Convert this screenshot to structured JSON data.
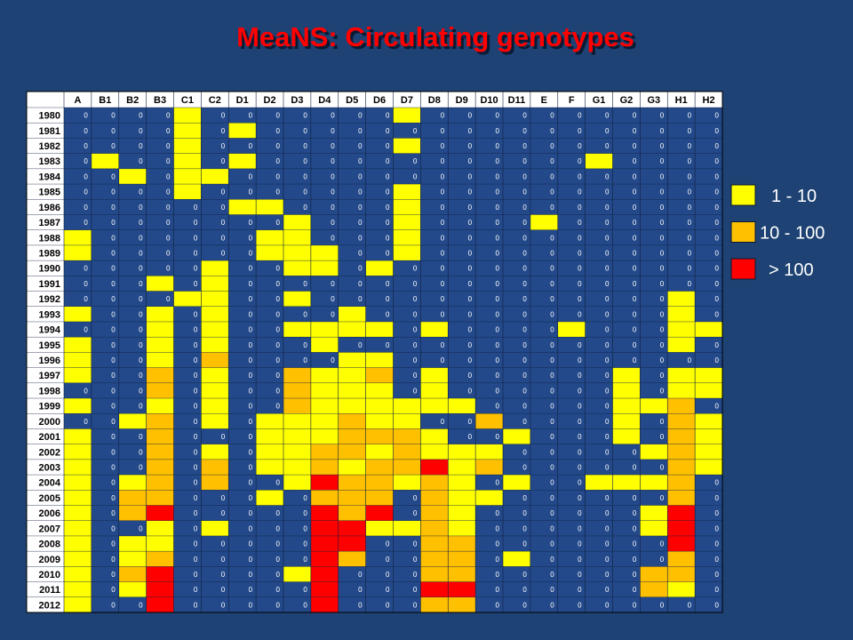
{
  "title": "MeaNS: Circulating genotypes",
  "legend": [
    {
      "label": "1 - 10",
      "color": "#ffff00"
    },
    {
      "label": "10 - 100",
      "color": "#ffc000"
    },
    {
      "label": "> 100",
      "color": "#ff0000"
    }
  ],
  "empty_color": "#23498a",
  "table": {
    "columns": [
      "A",
      "B1",
      "B2",
      "B3",
      "C1",
      "C2",
      "D1",
      "D2",
      "D3",
      "D4",
      "D5",
      "D6",
      "D7",
      "D8",
      "D9",
      "D10",
      "D11",
      "E",
      "F",
      "G1",
      "G2",
      "G3",
      "H1",
      "H2"
    ],
    "rows": [
      {
        "year": "1980",
        "cells": [
          0,
          0,
          0,
          0,
          1,
          0,
          0,
          0,
          0,
          0,
          0,
          0,
          1,
          0,
          0,
          0,
          0,
          0,
          0,
          0,
          0,
          0,
          0,
          0
        ]
      },
      {
        "year": "1981",
        "cells": [
          0,
          0,
          0,
          0,
          1,
          0,
          1,
          0,
          0,
          0,
          0,
          0,
          0,
          0,
          0,
          0,
          0,
          0,
          0,
          0,
          0,
          0,
          0,
          0
        ]
      },
      {
        "year": "1982",
        "cells": [
          0,
          0,
          0,
          0,
          1,
          0,
          0,
          0,
          0,
          0,
          0,
          0,
          1,
          0,
          0,
          0,
          0,
          0,
          0,
          0,
          0,
          0,
          0,
          0
        ]
      },
      {
        "year": "1983",
        "cells": [
          0,
          1,
          0,
          0,
          1,
          0,
          1,
          0,
          0,
          0,
          0,
          0,
          0,
          0,
          0,
          0,
          0,
          0,
          0,
          1,
          0,
          0,
          0,
          0
        ]
      },
      {
        "year": "1984",
        "cells": [
          0,
          0,
          1,
          0,
          1,
          1,
          0,
          0,
          0,
          0,
          0,
          0,
          0,
          0,
          0,
          0,
          0,
          0,
          0,
          0,
          0,
          0,
          0,
          0
        ]
      },
      {
        "year": "1985",
        "cells": [
          0,
          0,
          0,
          0,
          1,
          0,
          0,
          0,
          0,
          0,
          0,
          0,
          1,
          0,
          0,
          0,
          0,
          0,
          0,
          0,
          0,
          0,
          0,
          0
        ]
      },
      {
        "year": "1986",
        "cells": [
          0,
          0,
          0,
          0,
          0,
          0,
          1,
          1,
          0,
          0,
          0,
          0,
          1,
          0,
          0,
          0,
          0,
          0,
          0,
          0,
          0,
          0,
          0,
          0
        ]
      },
      {
        "year": "1987",
        "cells": [
          0,
          0,
          0,
          0,
          0,
          0,
          0,
          0,
          1,
          0,
          0,
          0,
          1,
          0,
          0,
          0,
          0,
          1,
          0,
          0,
          0,
          0,
          0,
          0
        ]
      },
      {
        "year": "1988",
        "cells": [
          1,
          0,
          0,
          0,
          0,
          0,
          0,
          1,
          1,
          0,
          0,
          0,
          1,
          0,
          0,
          0,
          0,
          0,
          0,
          0,
          0,
          0,
          0,
          0
        ]
      },
      {
        "year": "1989",
        "cells": [
          1,
          0,
          0,
          0,
          0,
          0,
          0,
          1,
          1,
          1,
          0,
          0,
          1,
          0,
          0,
          0,
          0,
          0,
          0,
          0,
          0,
          0,
          0,
          0
        ]
      },
      {
        "year": "1990",
        "cells": [
          0,
          0,
          0,
          0,
          0,
          1,
          0,
          0,
          1,
          1,
          0,
          1,
          0,
          0,
          0,
          0,
          0,
          0,
          0,
          0,
          0,
          0,
          0,
          0
        ]
      },
      {
        "year": "1991",
        "cells": [
          0,
          0,
          0,
          1,
          0,
          1,
          0,
          0,
          0,
          0,
          0,
          0,
          0,
          0,
          0,
          0,
          0,
          0,
          0,
          0,
          0,
          0,
          0,
          0
        ]
      },
      {
        "year": "1992",
        "cells": [
          0,
          0,
          0,
          0,
          1,
          1,
          0,
          0,
          1,
          0,
          0,
          0,
          0,
          0,
          0,
          0,
          0,
          0,
          0,
          0,
          0,
          0,
          1,
          0
        ]
      },
      {
        "year": "1993",
        "cells": [
          1,
          0,
          0,
          1,
          0,
          1,
          0,
          0,
          0,
          0,
          1,
          0,
          0,
          0,
          0,
          0,
          0,
          0,
          0,
          0,
          0,
          0,
          1,
          0
        ]
      },
      {
        "year": "1994",
        "cells": [
          0,
          0,
          0,
          1,
          0,
          1,
          0,
          0,
          1,
          1,
          1,
          1,
          0,
          1,
          0,
          0,
          0,
          0,
          1,
          0,
          0,
          0,
          1,
          1
        ]
      },
      {
        "year": "1995",
        "cells": [
          1,
          0,
          0,
          1,
          0,
          1,
          0,
          0,
          0,
          1,
          0,
          0,
          0,
          0,
          0,
          0,
          0,
          0,
          0,
          0,
          0,
          0,
          1,
          0
        ]
      },
      {
        "year": "1996",
        "cells": [
          1,
          0,
          0,
          1,
          0,
          2,
          0,
          0,
          0,
          0,
          1,
          1,
          0,
          0,
          0,
          0,
          0,
          0,
          0,
          0,
          0,
          0,
          0,
          0
        ]
      },
      {
        "year": "1997",
        "cells": [
          1,
          0,
          0,
          2,
          0,
          1,
          0,
          0,
          2,
          1,
          1,
          2,
          0,
          1,
          0,
          0,
          0,
          0,
          0,
          0,
          1,
          0,
          1,
          1
        ]
      },
      {
        "year": "1998",
        "cells": [
          0,
          0,
          0,
          2,
          0,
          1,
          0,
          0,
          2,
          1,
          1,
          1,
          0,
          1,
          0,
          0,
          0,
          0,
          0,
          0,
          1,
          0,
          1,
          1
        ]
      },
      {
        "year": "1999",
        "cells": [
          1,
          0,
          0,
          1,
          0,
          1,
          0,
          0,
          2,
          1,
          1,
          1,
          1,
          1,
          1,
          0,
          0,
          0,
          0,
          0,
          1,
          1,
          2,
          0
        ]
      },
      {
        "year": "2000",
        "cells": [
          0,
          0,
          1,
          2,
          0,
          1,
          0,
          1,
          1,
          1,
          2,
          1,
          1,
          0,
          0,
          2,
          0,
          0,
          0,
          0,
          1,
          0,
          2,
          1
        ]
      },
      {
        "year": "2001",
        "cells": [
          1,
          0,
          0,
          2,
          0,
          0,
          0,
          1,
          1,
          1,
          2,
          2,
          2,
          1,
          0,
          0,
          1,
          0,
          0,
          0,
          1,
          0,
          2,
          1
        ]
      },
      {
        "year": "2002",
        "cells": [
          1,
          0,
          0,
          2,
          0,
          1,
          0,
          1,
          1,
          2,
          2,
          1,
          2,
          1,
          1,
          1,
          0,
          0,
          0,
          0,
          0,
          1,
          2,
          1
        ]
      },
      {
        "year": "2003",
        "cells": [
          1,
          0,
          0,
          2,
          0,
          2,
          0,
          1,
          1,
          2,
          1,
          2,
          2,
          3,
          1,
          2,
          0,
          0,
          0,
          0,
          0,
          0,
          2,
          1
        ]
      },
      {
        "year": "2004",
        "cells": [
          1,
          0,
          1,
          2,
          0,
          2,
          0,
          0,
          1,
          3,
          2,
          2,
          1,
          2,
          1,
          0,
          1,
          0,
          0,
          1,
          1,
          1,
          2,
          0
        ]
      },
      {
        "year": "2005",
        "cells": [
          1,
          0,
          2,
          2,
          0,
          0,
          0,
          1,
          0,
          2,
          2,
          2,
          0,
          2,
          1,
          1,
          0,
          0,
          0,
          0,
          0,
          0,
          2,
          0
        ]
      },
      {
        "year": "2006",
        "cells": [
          1,
          0,
          2,
          3,
          0,
          0,
          0,
          0,
          0,
          3,
          2,
          3,
          0,
          2,
          1,
          0,
          0,
          0,
          0,
          0,
          0,
          1,
          3,
          0
        ]
      },
      {
        "year": "2007",
        "cells": [
          1,
          0,
          0,
          1,
          0,
          1,
          0,
          0,
          0,
          3,
          3,
          1,
          1,
          2,
          1,
          0,
          0,
          0,
          0,
          0,
          0,
          1,
          3,
          0
        ]
      },
      {
        "year": "2008",
        "cells": [
          1,
          0,
          1,
          1,
          0,
          0,
          0,
          0,
          0,
          3,
          3,
          0,
          0,
          2,
          2,
          0,
          0,
          0,
          0,
          0,
          0,
          0,
          3,
          0
        ]
      },
      {
        "year": "2009",
        "cells": [
          1,
          0,
          1,
          2,
          0,
          0,
          0,
          0,
          0,
          3,
          2,
          0,
          0,
          2,
          2,
          0,
          1,
          0,
          0,
          0,
          0,
          0,
          2,
          0
        ]
      },
      {
        "year": "2010",
        "cells": [
          1,
          0,
          2,
          3,
          0,
          0,
          0,
          0,
          1,
          3,
          0,
          0,
          0,
          2,
          2,
          0,
          0,
          0,
          0,
          0,
          0,
          2,
          2,
          0
        ]
      },
      {
        "year": "2011",
        "cells": [
          1,
          0,
          1,
          3,
          0,
          0,
          0,
          0,
          0,
          3,
          0,
          0,
          0,
          3,
          3,
          0,
          0,
          0,
          0,
          0,
          0,
          2,
          1,
          0
        ]
      },
      {
        "year": "2012",
        "cells": [
          1,
          0,
          0,
          3,
          0,
          0,
          0,
          0,
          0,
          3,
          0,
          0,
          0,
          2,
          2,
          0,
          0,
          0,
          0,
          0,
          0,
          0,
          0,
          0
        ]
      }
    ]
  }
}
